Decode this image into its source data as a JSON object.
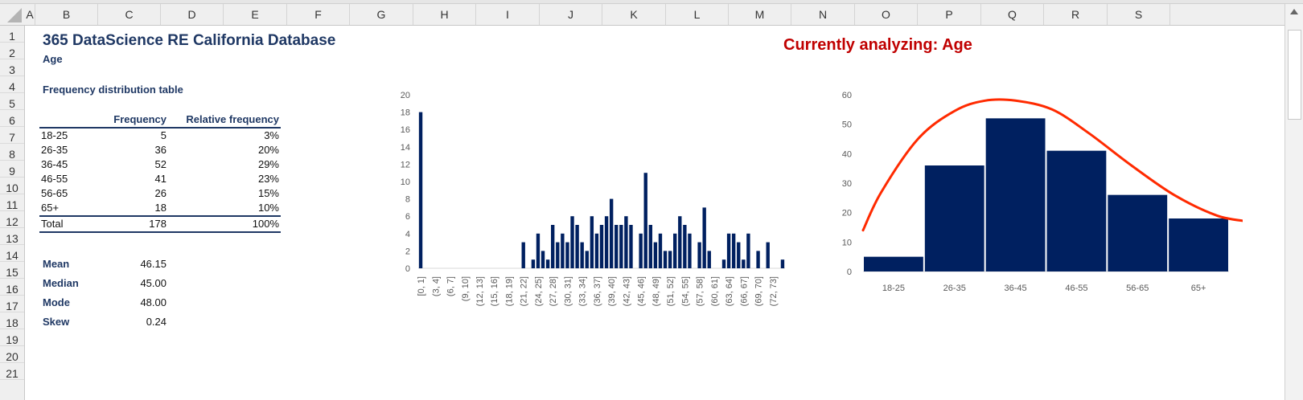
{
  "columns": [
    "A",
    "B",
    "C",
    "D",
    "E",
    "F",
    "G",
    "H",
    "I",
    "J",
    "K",
    "L",
    "M",
    "N",
    "O",
    "P",
    "Q",
    "R",
    "S"
  ],
  "rows": [
    "1",
    "2",
    "3",
    "4",
    "5",
    "6",
    "7",
    "8",
    "9",
    "10",
    "11",
    "12",
    "13",
    "14",
    "15",
    "16",
    "17",
    "18",
    "19",
    "20",
    "21"
  ],
  "sheet": {
    "title": "365 DataScience RE California Database",
    "subtitle": "Age",
    "table_title": "Frequency distribution table",
    "banner": "Currently analyzing: Age",
    "table": {
      "headers": [
        "",
        "Frequency",
        "Relative frequency"
      ],
      "rows": [
        {
          "label": "18-25",
          "freq": "5",
          "rel": "3%"
        },
        {
          "label": "26-35",
          "freq": "36",
          "rel": "20%"
        },
        {
          "label": "36-45",
          "freq": "52",
          "rel": "29%"
        },
        {
          "label": "46-55",
          "freq": "41",
          "rel": "23%"
        },
        {
          "label": "56-65",
          "freq": "26",
          "rel": "15%"
        },
        {
          "label": "65+",
          "freq": "18",
          "rel": "10%"
        }
      ],
      "total": {
        "label": "Total",
        "freq": "178",
        "rel": "100%"
      }
    },
    "stats": [
      {
        "label": "Mean",
        "value": "46.15"
      },
      {
        "label": "Median",
        "value": "45.00"
      },
      {
        "label": "Mode",
        "value": "48.00"
      },
      {
        "label": "Skew",
        "value": "0.24"
      }
    ]
  },
  "chart_data": [
    {
      "type": "bar",
      "title": "",
      "xlabel": "",
      "ylabel": "",
      "ylim": [
        0,
        20
      ],
      "yticks": [
        0,
        2,
        4,
        6,
        8,
        10,
        12,
        14,
        16,
        18,
        20
      ],
      "color": "#002060",
      "x_tick_labels": [
        "[0, 1]",
        "(3, 4]",
        "(6, 7]",
        "(9, 10]",
        "(12, 13]",
        "(15, 16]",
        "(18, 19]",
        "(21, 22]",
        "(24, 25]",
        "(27, 28]",
        "(30, 31]",
        "(33, 34]",
        "(36, 37]",
        "(39, 40]",
        "(42, 43]",
        "(45, 46]",
        "(48, 49]",
        "(51, 52]",
        "(54, 55]",
        "(57, 58]",
        "(60, 61]",
        "(63, 64]",
        "(66, 67]",
        "(69, 70]",
        "(72, 73]"
      ],
      "values": [
        18,
        0,
        0,
        0,
        0,
        0,
        0,
        0,
        0,
        0,
        0,
        0,
        0,
        0,
        0,
        0,
        0,
        0,
        0,
        0,
        0,
        3,
        0,
        1,
        4,
        2,
        1,
        5,
        3,
        4,
        3,
        6,
        5,
        3,
        2,
        6,
        4,
        5,
        6,
        8,
        5,
        5,
        6,
        5,
        0,
        4,
        11,
        5,
        3,
        4,
        2,
        2,
        4,
        6,
        5,
        4,
        0,
        3,
        7,
        2,
        0,
        0,
        1,
        4,
        4,
        3,
        1,
        4,
        0,
        2,
        0,
        3,
        0,
        0,
        1
      ]
    },
    {
      "type": "bar",
      "title": "",
      "xlabel": "",
      "ylabel": "",
      "ylim": [
        0,
        60
      ],
      "yticks": [
        0,
        10,
        20,
        30,
        40,
        50,
        60
      ],
      "color": "#002060",
      "curve_color": "#ff2a00",
      "categories": [
        "18-25",
        "26-35",
        "36-45",
        "46-55",
        "56-65",
        "65+"
      ],
      "values": [
        5,
        36,
        52,
        41,
        26,
        18
      ],
      "curve": [
        [
          -0.5,
          14
        ],
        [
          -0.2,
          27
        ],
        [
          0.4,
          45
        ],
        [
          1.0,
          54.5
        ],
        [
          1.5,
          58
        ],
        [
          2.0,
          58
        ],
        [
          2.6,
          55
        ],
        [
          3.2,
          47
        ],
        [
          3.9,
          36
        ],
        [
          4.6,
          26
        ],
        [
          5.3,
          19
        ],
        [
          5.8,
          17
        ]
      ]
    }
  ]
}
